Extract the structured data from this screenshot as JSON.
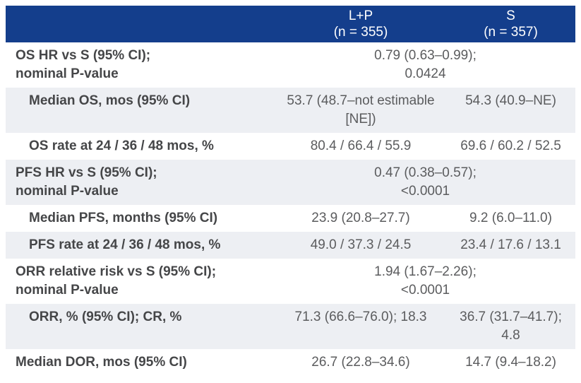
{
  "columns": {
    "group_lp": "L+P\n(n = 355)",
    "group_s": "S\n(n = 357)"
  },
  "rows": [
    {
      "label": "OS HR vs S (95% CI);\nnominal P-value",
      "combined": "0.79 (0.63–0.99);\n0.0424"
    },
    {
      "label": "Median OS, mos (95% CI)",
      "lp": "53.7 (48.7–not estimable\n[NE])",
      "s": "54.3 (40.9–NE)"
    },
    {
      "label": "OS rate at 24 / 36 / 48 mos, %",
      "lp": "80.4 / 66.4 / 55.9",
      "s": "69.6 / 60.2 / 52.5"
    },
    {
      "label": "PFS HR vs S (95% CI);\nnominal P-value",
      "combined": "0.47 (0.38–0.57);\n<0.0001"
    },
    {
      "label": "Median PFS, months (95% CI)",
      "lp": "23.9 (20.8–27.7)",
      "s": "9.2 (6.0–11.0)"
    },
    {
      "label": "PFS rate at 24 / 36 / 48 mos, %",
      "lp": "49.0 / 37.3 / 24.5",
      "s": "23.4 / 17.6 / 13.1"
    },
    {
      "label": "ORR relative risk vs S (95% CI);\nnominal P-value",
      "combined": "1.94 (1.67–2.26);\n<0.0001"
    },
    {
      "label": "ORR, % (95% CI); CR, %",
      "lp": "71.3 (66.6–76.0); 18.3",
      "s": "36.7 (31.7–41.7);\n4.8"
    },
    {
      "label": "Median DOR, mos (95% CI)",
      "lp": "26.7 (22.8–34.6)",
      "s": "14.7 (9.4–18.2)"
    }
  ],
  "colors": {
    "header_bg": "#143e8c",
    "header_text": "#ffffff",
    "stripe_bg": "#edeff3",
    "label_text": "#454648",
    "value_text": "#5b5c5e"
  }
}
